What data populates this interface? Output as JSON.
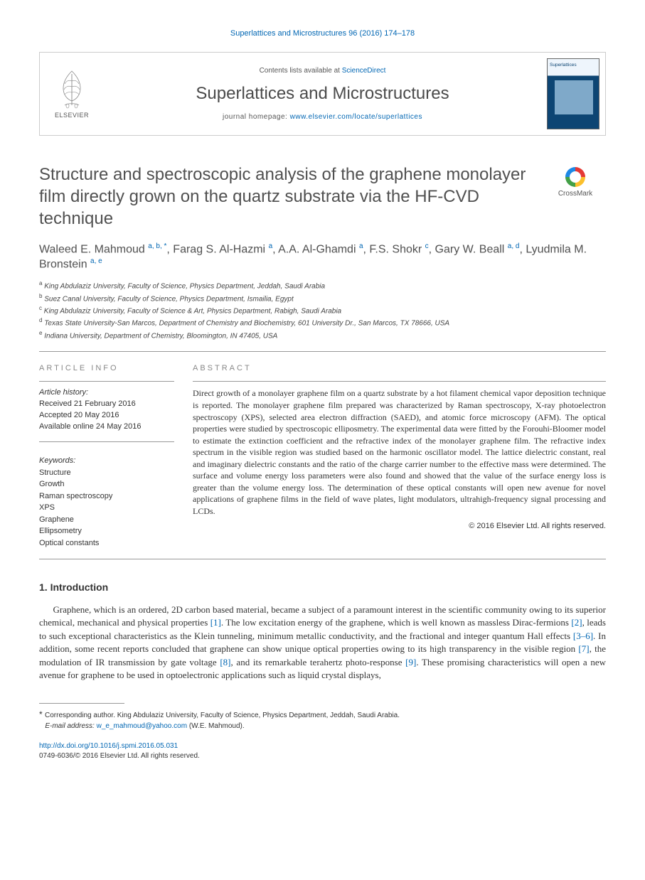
{
  "running_head": "Superlattices and Microstructures 96 (2016) 174–178",
  "masthead": {
    "publisher": "ELSEVIER",
    "contents_prefix": "Contents lists available at ",
    "contents_link": "ScienceDirect",
    "journal": "Superlattices and Microstructures",
    "homepage_prefix": "journal homepage: ",
    "homepage_url": "www.elsevier.com/locate/superlattices",
    "cover_label": "Superlattices"
  },
  "crossmark": "CrossMark",
  "title": "Structure and spectroscopic analysis of the graphene monolayer film directly grown on the quartz substrate via the HF-CVD technique",
  "authors_html": "Waleed E. Mahmoud <sup>a, b, *</sup>, Farag S. Al-Hazmi <sup>a</sup>, A.A. Al-Ghamdi <sup>a</sup>, F.S. Shokr <sup>c</sup>, Gary W. Beall <sup>a, d</sup>, Lyudmila M. Bronstein <sup>a, e</sup>",
  "affiliations": [
    {
      "sup": "a",
      "text": "King Abdulaziz University, Faculty of Science, Physics Department, Jeddah, Saudi Arabia"
    },
    {
      "sup": "b",
      "text": "Suez Canal University, Faculty of Science, Physics Department, Ismailia, Egypt"
    },
    {
      "sup": "c",
      "text": "King Abdulaziz University, Faculty of Science & Art, Physics Department, Rabigh, Saudi Arabia"
    },
    {
      "sup": "d",
      "text": "Texas State University-San Marcos, Department of Chemistry and Biochemistry, 601 University Dr., San Marcos, TX 78666, USA"
    },
    {
      "sup": "e",
      "text": "Indiana University, Department of Chemistry, Bloomington, IN 47405, USA"
    }
  ],
  "info_head": "ARTICLE INFO",
  "abstract_head": "ABSTRACT",
  "history": {
    "label": "Article history:",
    "received": "Received 21 February 2016",
    "accepted": "Accepted 20 May 2016",
    "online": "Available online 24 May 2016"
  },
  "keywords": {
    "label": "Keywords:",
    "items": [
      "Structure",
      "Growth",
      "Raman spectroscopy",
      "XPS",
      "Graphene",
      "Ellipsometry",
      "Optical constants"
    ]
  },
  "abstract": "Direct growth of a monolayer graphene film on a quartz substrate by a hot filament chemical vapor deposition technique is reported. The monolayer graphene film prepared was characterized by Raman spectroscopy, X-ray photoelectron spectroscopy (XPS), selected area electron diffraction (SAED), and atomic force microscopy (AFM). The optical properties were studied by spectroscopic elliposmetry. The experimental data were fitted by the Forouhi-Bloomer model to estimate the extinction coefficient and the refractive index of the monolayer graphene film. The refractive index spectrum in the visible region was studied based on the harmonic oscillator model. The lattice dielectric constant, real and imaginary dielectric constants and the ratio of the charge carrier number to the effective mass were determined. The surface and volume energy loss parameters were also found and showed that the value of the surface energy loss is greater than the volume energy loss. The determination of these optical constants will open new avenue for novel applications of graphene films in the field of wave plates, light modulators, ultrahigh-frequency signal processing and LCDs.",
  "copyright": "© 2016 Elsevier Ltd. All rights reserved.",
  "section1_title": "1. Introduction",
  "intro_html": "Graphene, which is an ordered, 2D carbon based material, became a subject of a paramount interest in the scientific community owing to its superior chemical, mechanical and physical properties <a class='ref' href='#'>[1]</a>. The low excitation energy of the graphene, which is well known as massless Dirac-fermions <a class='ref' href='#'>[2]</a>, leads to such exceptional characteristics as the Klein tunneling, minimum metallic conductivity, and the fractional and integer quantum Hall effects <a class='ref' href='#'>[3–6]</a>. In addition, some recent reports concluded that graphene can show unique optical properties owing to its high transparency in the visible region <a class='ref' href='#'>[7]</a>, the modulation of IR transmission by gate voltage <a class='ref' href='#'>[8]</a>, and its remarkable terahertz photo-response <a class='ref' href='#'>[9]</a>. These promising characteristics will open a new avenue for graphene to be used in optoelectronic applications such as liquid crystal displays,",
  "footnote": {
    "corr": "Corresponding author. King Abdulaziz University, Faculty of Science, Physics Department, Jeddah, Saudi Arabia.",
    "email_label": "E-mail address:",
    "email": "w_e_mahmoud@yahoo.com",
    "email_person": "(W.E. Mahmoud)."
  },
  "doi": {
    "url": "http://dx.doi.org/10.1016/j.spmi.2016.05.031",
    "issn_line": "0749-6036/© 2016 Elsevier Ltd. All rights reserved."
  },
  "colors": {
    "link": "#0066b3",
    "rule": "#999999",
    "title_gray": "#505050"
  }
}
